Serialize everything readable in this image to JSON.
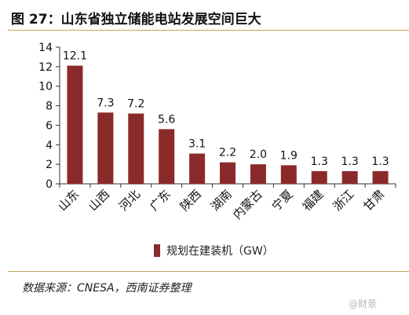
{
  "figure_title": "图 27：山东省独立储能电站发展空间巨大",
  "source_note": "数据来源：CNESA，西南证券整理",
  "watermark": "@财景",
  "colors": {
    "bar": "#8b2a2a",
    "rule": "#c8a064",
    "axis": "#333333"
  },
  "chart_data": {
    "type": "bar",
    "title": "",
    "xlabel": "",
    "ylabel": "",
    "categories": [
      "山东",
      "山西",
      "河北",
      "广东",
      "陕西",
      "湖南",
      "内蒙古",
      "宁夏",
      "福建",
      "浙江",
      "甘肃"
    ],
    "series": [
      {
        "name": "规划在建装机（GW）",
        "values": [
          12.1,
          7.3,
          7.2,
          5.6,
          3.1,
          2.2,
          2.0,
          1.9,
          1.3,
          1.3,
          1.3
        ],
        "value_labels": [
          "12.1",
          "7.3",
          "7.2",
          "5.6",
          "3.1",
          "2.2",
          "2.0",
          "1.9",
          "1.3",
          "1.3",
          "1.3"
        ]
      }
    ],
    "ylim": [
      0,
      14
    ],
    "yticks": [
      0,
      2,
      4,
      6,
      8,
      10,
      12,
      14
    ],
    "grid": false,
    "legend_position": "bottom"
  }
}
